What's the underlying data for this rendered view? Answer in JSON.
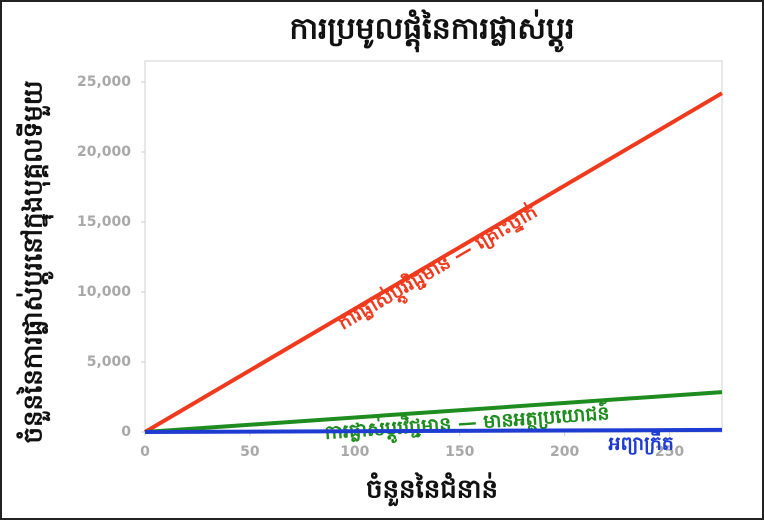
{
  "chart_data": {
    "type": "line",
    "title": "ការប្រមូលផ្តុំនៃការផ្លាស់ប្តូរ",
    "x_label": "ចំនួននៃជំនាន់",
    "y_label": "ចំនួននៃការផ្លាស់ប្តូរនៅក្នុងបុគ្គលទីមួយ",
    "x": [
      0,
      275
    ],
    "series": [
      {
        "name": "ការផ្លាស់ប្តូរវិជ្ជមាន — គ្រោះថ្នាក់",
        "color": "#f03a1e",
        "values": [
          0,
          24200
        ]
      },
      {
        "name": "ការផ្លាស់ប្តូរវិជ្ជមាន — មានអត្ថប្រយោជន៍",
        "color": "#1e8c1e",
        "values": [
          0,
          2850
        ]
      },
      {
        "name": "អព្យាក្រឹត",
        "color": "#1e3cd2",
        "values": [
          0,
          150
        ]
      }
    ],
    "xlim": [
      0,
      275
    ],
    "xticks": [
      0,
      50,
      100,
      150,
      200,
      250
    ],
    "ylim": [
      0,
      26500
    ],
    "yticks": [
      0,
      {
        "value": 5000,
        "label": "5,000"
      },
      {
        "value": 10000,
        "label": "10,000"
      },
      {
        "value": 15000,
        "label": "15,000"
      },
      {
        "value": 20000,
        "label": "20,000"
      },
      {
        "value": 25000,
        "label": "25,000"
      }
    ]
  }
}
